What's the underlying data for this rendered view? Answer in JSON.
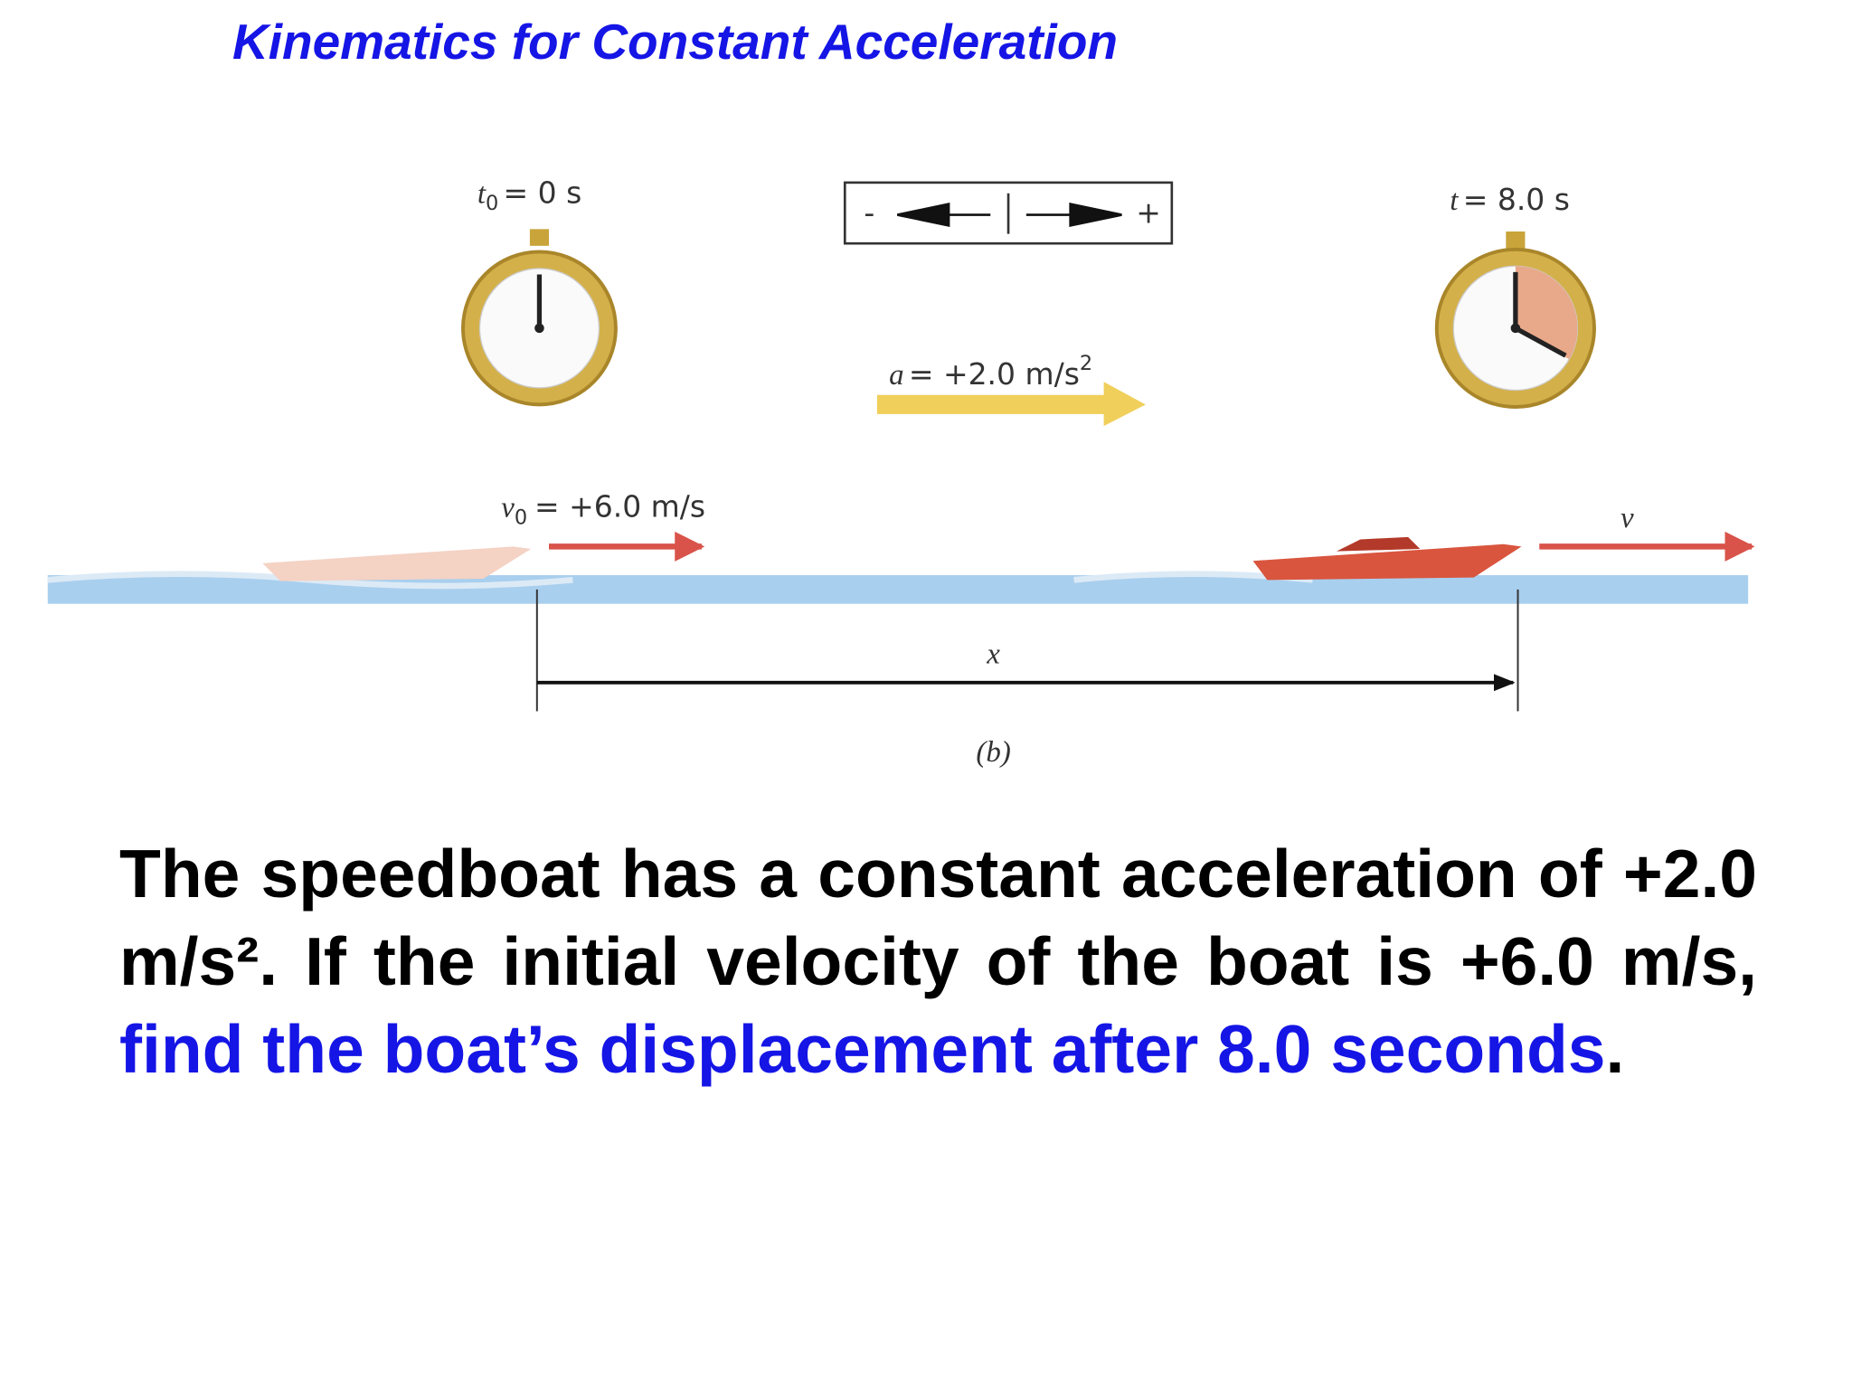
{
  "title": "Kinematics for Constant Acceleration",
  "figure": {
    "start_clock": {
      "symbol": "t",
      "subscript": "0",
      "text": "= 0 s"
    },
    "end_clock": {
      "symbol": "t",
      "text": "= 8.0 s"
    },
    "direction": {
      "negative": "-",
      "positive": "+"
    },
    "acceleration": {
      "symbol": "a",
      "text": "= +2.0 m/s",
      "superscript": "2"
    },
    "initial_velocity": {
      "symbol": "v",
      "subscript": "0",
      "text": "= +6.0 m/s"
    },
    "final_velocity": "v",
    "displacement": "x",
    "caption": "(b)"
  },
  "problem": {
    "text": "The speedboat has a constant acceleration of +2.0 m/s². If the initial velocity of the boat is +6.0 m/s, ",
    "highlight": "find the boat’s displacement after 8.0 seconds",
    "end": "."
  }
}
